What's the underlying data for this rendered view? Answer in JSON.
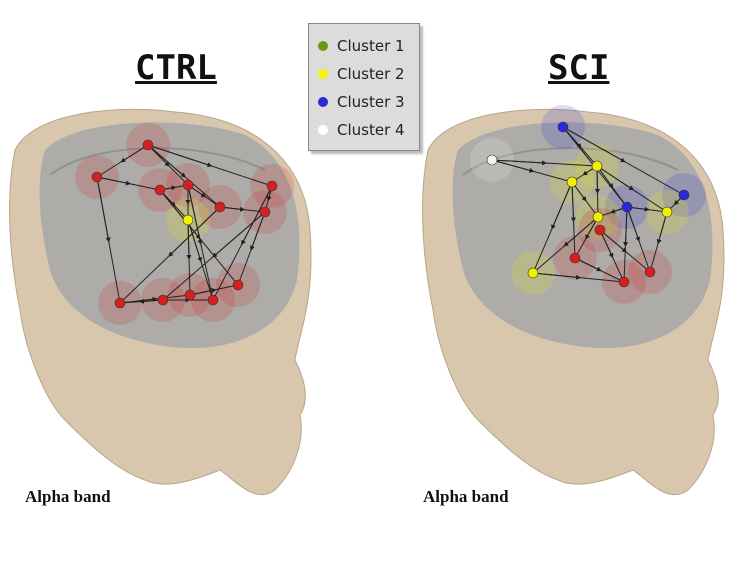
{
  "panels": [
    {
      "title": "CTRL",
      "band_label": "Alpha band"
    },
    {
      "title": "SCI",
      "band_label": "Alpha band"
    }
  ],
  "legend": {
    "items": [
      {
        "label": "Cluster 1",
        "color": "#6a9a10"
      },
      {
        "label": "Cluster 2",
        "color": "#f5f500"
      },
      {
        "label": "Cluster 3",
        "color": "#2a2ad8"
      },
      {
        "label": "Cluster 4",
        "color": "#ffffff"
      }
    ]
  },
  "colors": {
    "skin": "#d9c7ad",
    "brain": "#9ea3a8",
    "edge": "#222222",
    "ctrl_node": "#d42020"
  }
}
